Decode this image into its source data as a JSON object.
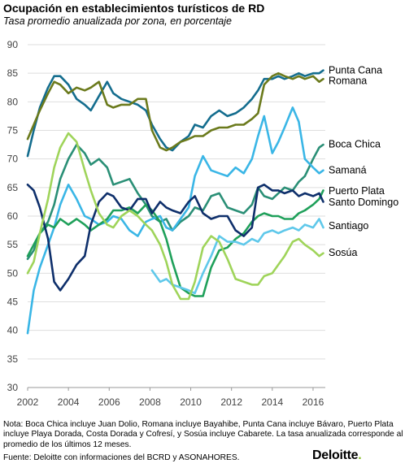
{
  "title": "Ocupación en establecimientos turísticos de RD",
  "subtitle": "Tasa promedio anualizada por zona, en porcentaje",
  "note": "Nota: Boca Chica incluye Juan Dolio, Romana incluye Bayahibe, Punta Cana incluye Bávaro, Puerto Plata incluye Playa Dorada, Costa Dorada y Cofresí, y Sosúa incluye Cabarete. La tasa anualizada corresponde al promedio de los últimos 12 meses.",
  "source": "Fuente: Deloitte con informaciones del BCRD y ASONAHORES.",
  "brand": {
    "name": "Deloitte",
    "dot": "."
  },
  "chart_data": {
    "type": "line",
    "title": "Ocupación en establecimientos turísticos de RD",
    "subtitle": "Tasa promedio anualizada por zona, en porcentaje",
    "xlim": [
      2002,
      2016.6
    ],
    "ylim": [
      30,
      90
    ],
    "x_ticks": [
      2002,
      2004,
      2006,
      2008,
      2010,
      2012,
      2014,
      2016
    ],
    "y_ticks": [
      30,
      35,
      40,
      45,
      50,
      55,
      60,
      65,
      70,
      75,
      80,
      85,
      90
    ],
    "grid": "horizontal",
    "legend": "labels at line ends (right)",
    "series": [
      {
        "name": "Punta Cana",
        "color": "#146d8e",
        "x": [
          2002,
          2002.3,
          2002.6,
          2003,
          2003.3,
          2003.6,
          2004,
          2004.4,
          2004.8,
          2005.1,
          2005.5,
          2005.9,
          2006.2,
          2006.6,
          2007,
          2007.4,
          2007.8,
          2008.1,
          2008.5,
          2008.8,
          2009.1,
          2009.5,
          2009.9,
          2010.2,
          2010.6,
          2011,
          2011.4,
          2011.8,
          2012.2,
          2012.6,
          2013,
          2013.3,
          2013.6,
          2014,
          2014.3,
          2014.6,
          2015,
          2015.3,
          2015.6,
          2016,
          2016.3,
          2016.5
        ],
        "y": [
          70.5,
          75,
          79,
          82.5,
          84.5,
          84.5,
          83,
          80.5,
          79.5,
          78.5,
          81,
          83.5,
          81.5,
          80.5,
          80,
          79.5,
          78.5,
          76,
          73.5,
          72,
          71.5,
          73,
          74,
          76,
          75.5,
          77.5,
          78.5,
          77.5,
          78,
          79,
          80.5,
          82,
          84,
          84,
          84.5,
          84,
          84.5,
          85,
          84.5,
          85,
          85,
          85.5
        ]
      },
      {
        "name": "Romana",
        "color": "#6b7a1c",
        "x": [
          2002,
          2002.3,
          2002.6,
          2003,
          2003.3,
          2003.6,
          2004,
          2004.4,
          2004.8,
          2005.1,
          2005.5,
          2005.9,
          2006.2,
          2006.6,
          2007,
          2007.4,
          2007.8,
          2008.1,
          2008.5,
          2008.8,
          2009.1,
          2009.5,
          2009.9,
          2010.2,
          2010.6,
          2011,
          2011.4,
          2011.8,
          2012.2,
          2012.6,
          2013,
          2013.3,
          2013.6,
          2014,
          2014.3,
          2014.6,
          2015,
          2015.3,
          2015.6,
          2016,
          2016.3,
          2016.5
        ],
        "y": [
          73.5,
          76,
          78.5,
          81.5,
          83.5,
          83,
          81.5,
          82.5,
          82,
          82.5,
          83.5,
          79.5,
          79,
          79.5,
          79.5,
          80.5,
          80.5,
          75,
          72,
          71.5,
          72,
          73,
          73.5,
          74,
          74,
          75,
          75.5,
          75.5,
          76,
          76,
          77,
          78,
          83,
          84.5,
          85,
          84.5,
          84,
          84.5,
          84,
          84.5,
          83.5,
          84
        ]
      },
      {
        "name": "Boca Chica",
        "color": "#2a8f76",
        "x": [
          2002,
          2002.3,
          2002.6,
          2003,
          2003.3,
          2003.6,
          2004,
          2004.4,
          2004.8,
          2005.1,
          2005.5,
          2005.9,
          2006.2,
          2006.6,
          2007,
          2007.4,
          2007.8,
          2008.1,
          2008.5,
          2008.8,
          2009.1,
          2009.5,
          2009.9,
          2010.2,
          2010.6,
          2011,
          2011.4,
          2011.8,
          2012.2,
          2012.6,
          2013,
          2013.3,
          2013.6,
          2014,
          2014.3,
          2014.6,
          2015,
          2015.3,
          2015.6,
          2016,
          2016.3,
          2016.5
        ],
        "y": [
          52.5,
          54,
          57,
          59,
          62,
          66.5,
          70,
          72.5,
          71,
          69,
          70,
          68.5,
          65.5,
          66,
          66.5,
          64,
          62,
          60,
          59,
          59.5,
          57.5,
          59,
          60,
          61.5,
          61,
          63.5,
          64,
          61.5,
          61,
          60.5,
          62,
          65,
          63.5,
          63,
          64,
          65,
          64.5,
          66,
          67,
          70,
          72,
          72.5
        ]
      },
      {
        "name": "Samaná",
        "color": "#3ab6e6",
        "x": [
          2002,
          2002.3,
          2002.6,
          2003,
          2003.3,
          2003.6,
          2004,
          2004.4,
          2004.8,
          2005.1,
          2005.5,
          2005.9,
          2006.2,
          2006.6,
          2007,
          2007.4,
          2007.8,
          2008.1,
          2008.5,
          2008.8,
          2009.1,
          2009.5,
          2009.9,
          2010.2,
          2010.6,
          2011,
          2011.4,
          2011.8,
          2012.2,
          2012.6,
          2013,
          2013.3,
          2013.6,
          2014,
          2014.3,
          2014.6,
          2015,
          2015.3,
          2015.6,
          2016,
          2016.3,
          2016.5
        ],
        "y": [
          39.5,
          47,
          51,
          55,
          58,
          62,
          65.5,
          63,
          60,
          59.5,
          58.5,
          59,
          60,
          59.5,
          57.5,
          56.5,
          59,
          59.5,
          60,
          58,
          57.5,
          59.5,
          61.5,
          67,
          70.5,
          68,
          67.5,
          67,
          68.5,
          67.5,
          70,
          74,
          77.5,
          71,
          73,
          75.5,
          79,
          76.5,
          70,
          68.5,
          67.5,
          68
        ]
      },
      {
        "name": "Puerto Plata",
        "color": "#1fa05a",
        "x": [
          2002,
          2002.3,
          2002.6,
          2003,
          2003.3,
          2003.6,
          2004,
          2004.4,
          2004.8,
          2005.1,
          2005.5,
          2005.9,
          2006.2,
          2006.6,
          2007,
          2007.4,
          2007.8,
          2008.1,
          2008.5,
          2008.8,
          2009.1,
          2009.5,
          2009.9,
          2010.2,
          2010.6,
          2011,
          2011.4,
          2011.8,
          2012.2,
          2012.6,
          2013,
          2013.3,
          2013.6,
          2014,
          2014.3,
          2014.6,
          2015,
          2015.3,
          2015.6,
          2016,
          2016.3,
          2016.5
        ],
        "y": [
          53,
          55,
          57,
          58.5,
          58,
          59.5,
          58.5,
          59.5,
          58.5,
          57.5,
          58.5,
          59.5,
          61,
          61,
          61.5,
          60.5,
          62,
          61,
          59,
          56,
          52,
          47.5,
          46.5,
          46,
          46,
          51,
          54,
          54.5,
          56,
          57,
          59,
          60,
          60.5,
          60,
          60,
          59.5,
          59.5,
          60.5,
          61,
          62,
          63,
          64.5
        ]
      },
      {
        "name": "Santo Domingo",
        "color": "#0e2f6b",
        "x": [
          2002,
          2002.3,
          2002.6,
          2003,
          2003.3,
          2003.6,
          2004,
          2004.4,
          2004.8,
          2005.1,
          2005.5,
          2005.9,
          2006.2,
          2006.6,
          2007,
          2007.4,
          2007.8,
          2008.1,
          2008.5,
          2008.8,
          2009.1,
          2009.5,
          2009.9,
          2010.2,
          2010.6,
          2011,
          2011.4,
          2011.8,
          2012.2,
          2012.6,
          2013,
          2013.3,
          2013.6,
          2014,
          2014.3,
          2014.6,
          2015,
          2015.3,
          2015.6,
          2016,
          2016.3,
          2016.5
        ],
        "y": [
          65.5,
          64.5,
          61.5,
          56,
          48.5,
          47,
          49,
          51.5,
          53,
          58.5,
          62.5,
          64,
          63.5,
          61.5,
          61,
          63,
          63,
          60.5,
          62.5,
          61.5,
          61,
          60.5,
          62.5,
          63.5,
          60.5,
          59.5,
          60,
          60,
          57.5,
          56.5,
          58,
          65,
          65.5,
          64.5,
          64.5,
          64,
          64.5,
          63.5,
          64,
          63.5,
          64,
          62.5
        ]
      },
      {
        "name": "Santiago",
        "color": "#5fc8ea",
        "x": [
          2008.1,
          2008.5,
          2008.8,
          2009.1,
          2009.5,
          2009.9,
          2010.2,
          2010.6,
          2011,
          2011.4,
          2011.8,
          2012.2,
          2012.6,
          2013,
          2013.3,
          2013.6,
          2014,
          2014.3,
          2014.6,
          2015,
          2015.3,
          2015.6,
          2016,
          2016.3,
          2016.5
        ],
        "y": [
          50.5,
          48.5,
          49,
          48,
          47.5,
          47,
          46.5,
          50,
          53,
          56.5,
          55.5,
          55.5,
          55,
          56,
          55.5,
          57,
          57.5,
          57,
          57.5,
          58,
          57.5,
          58.5,
          58,
          59.5,
          58
        ]
      },
      {
        "name": "Sosúa",
        "color": "#9fd45a",
        "x": [
          2002,
          2002.3,
          2002.6,
          2003,
          2003.3,
          2003.6,
          2004,
          2004.4,
          2004.8,
          2005.1,
          2005.5,
          2005.9,
          2006.2,
          2006.6,
          2007,
          2007.4,
          2007.8,
          2008.1,
          2008.5,
          2008.8,
          2009.1,
          2009.5,
          2009.9,
          2010.2,
          2010.6,
          2011,
          2011.4,
          2011.8,
          2012.2,
          2012.6,
          2013,
          2013.3,
          2013.6,
          2014,
          2014.3,
          2014.6,
          2015,
          2015.3,
          2015.6,
          2016,
          2016.3,
          2016.5
        ],
        "y": [
          50,
          52,
          57,
          63,
          68.5,
          72,
          74.5,
          73,
          68,
          64.5,
          60.5,
          58.5,
          58,
          60,
          61,
          60,
          58.5,
          57.5,
          55,
          52,
          48,
          45.5,
          45.5,
          48.5,
          54.5,
          56.5,
          55.5,
          52.5,
          49,
          48.5,
          48,
          48,
          49.5,
          50,
          51.5,
          53,
          55.5,
          56,
          55,
          54,
          53,
          53.5
        ]
      }
    ],
    "labels": [
      {
        "text": "Punta Cana",
        "y": 85.5
      },
      {
        "text": "Romana",
        "y": 83.7
      },
      {
        "text": "Boca Chica",
        "y": 72.6
      },
      {
        "text": "Samaná",
        "y": 68
      },
      {
        "text": "Puerto Plata",
        "y": 64.4
      },
      {
        "text": "Santo Domingo",
        "y": 62.4
      },
      {
        "text": "Santiago",
        "y": 58.3
      },
      {
        "text": "Sosúa",
        "y": 53.6
      }
    ]
  }
}
